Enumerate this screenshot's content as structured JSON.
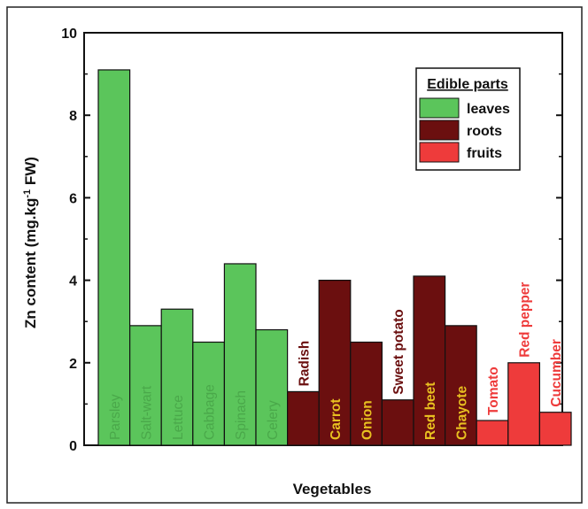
{
  "chart_data": {
    "type": "bar",
    "title": "",
    "xlabel": "Vegetables",
    "ylabel": {
      "main": "Zn content (mg.kg",
      "superscript": "-1",
      "suffix": " FW)"
    },
    "ylim": [
      0,
      10
    ],
    "yticks": [
      "0",
      "2",
      "4",
      "6",
      "8",
      "10"
    ],
    "grid": false,
    "legend": {
      "title": "Edible parts",
      "position": "top-right",
      "entries": [
        {
          "label": "leaves",
          "color": "#5bc55b"
        },
        {
          "label": "roots",
          "color": "#6b0f0f"
        },
        {
          "label": "fruits",
          "color": "#ee3b3b"
        }
      ]
    },
    "categories": [
      "Parsley",
      "Salt-wart",
      "Lettuce",
      "Cabbage",
      "Spinach",
      "Celery",
      "Radish",
      "Carrot",
      "Onion",
      "Sweet potato",
      "Red beet",
      "Chayote",
      "Tomato",
      "Red pepper",
      "Cucumber"
    ],
    "values": [
      9.1,
      2.9,
      3.3,
      2.5,
      4.4,
      2.8,
      1.3,
      4.0,
      2.5,
      1.1,
      4.1,
      2.9,
      0.6,
      2.0,
      0.8
    ],
    "groups": [
      "leaves",
      "leaves",
      "leaves",
      "leaves",
      "leaves",
      "leaves",
      "roots",
      "roots",
      "roots",
      "roots",
      "roots",
      "roots",
      "fruits",
      "fruits",
      "fruits"
    ]
  },
  "colors": {
    "leaves": "#5bc55b",
    "roots": "#6b0f0f",
    "fruits": "#ee3b3b",
    "label_on_leaves": "#4aa84a",
    "label_on_roots": "#e8c020",
    "label_root_above": "#6b0f0f",
    "label_fruit_above": "#ee3b3b"
  }
}
